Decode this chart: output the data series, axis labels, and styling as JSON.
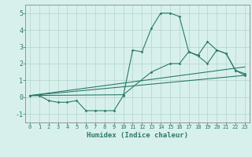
{
  "xlabel": "Humidex (Indice chaleur)",
  "bg_color": "#d8f0ec",
  "grid_color": "#b8d8d0",
  "line_color": "#2a7a6a",
  "xlim": [
    -0.5,
    23.5
  ],
  "ylim": [
    -1.5,
    5.5
  ],
  "xticks": [
    0,
    1,
    2,
    3,
    4,
    5,
    6,
    7,
    8,
    9,
    10,
    11,
    12,
    13,
    14,
    15,
    16,
    17,
    18,
    19,
    20,
    21,
    22,
    23
  ],
  "yticks": [
    -1,
    0,
    1,
    2,
    3,
    4,
    5
  ],
  "line1_x": [
    0,
    1,
    2,
    3,
    4,
    5,
    6,
    7,
    8,
    9,
    10,
    11,
    12,
    13,
    14,
    15,
    16,
    17,
    18,
    19,
    20,
    21,
    22,
    23
  ],
  "line1_y": [
    0.1,
    0.1,
    -0.2,
    -0.3,
    -0.3,
    -0.2,
    -0.8,
    -0.8,
    -0.8,
    -0.8,
    0.1,
    2.8,
    2.7,
    4.1,
    5.0,
    5.0,
    4.8,
    2.7,
    2.5,
    3.3,
    2.8,
    2.6,
    1.6,
    1.4
  ],
  "line2_x": [
    0,
    23
  ],
  "line2_y": [
    0.1,
    1.8
  ],
  "line3_x": [
    0,
    10,
    13,
    15,
    16,
    17,
    18,
    19,
    20,
    21,
    22,
    23
  ],
  "line3_y": [
    0.1,
    0.15,
    1.5,
    2.0,
    2.0,
    2.7,
    2.45,
    2.0,
    2.8,
    2.6,
    1.6,
    1.3
  ],
  "line4_x": [
    0,
    23
  ],
  "line4_y": [
    0.1,
    1.3
  ]
}
